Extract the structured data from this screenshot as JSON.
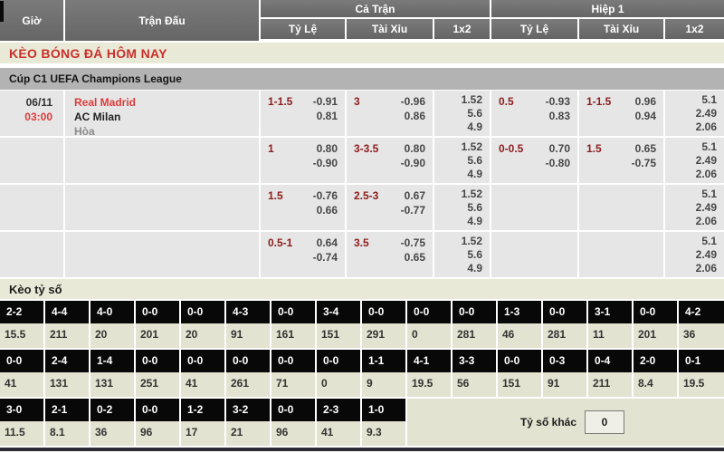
{
  "header": {
    "col_time": "Giờ",
    "col_match": "Trận Đấu",
    "col_full_time": "Cả Trận",
    "col_first_half": "Hiệp 1",
    "sub_handicap": "Tỷ Lệ",
    "sub_over_under": "Tài Xỉu",
    "sub_1x2": "1x2"
  },
  "title": "KÈO BÓNG ĐÁ HÔM NAY",
  "league": "Cúp C1 UEFA Champions League",
  "match": {
    "date": "06/11",
    "time": "03:00",
    "home": "Real Madrid",
    "away": "AC Milan",
    "draw": "Hòa"
  },
  "colors": {
    "accent_red": "#cb2f2b",
    "handicap_maroon": "#8e1d1d",
    "header_gray": "#6f6f6f",
    "beige": "#e8e9d6",
    "row_gray": "#e6e6e6",
    "score_black": "#080808"
  },
  "odds_rows": [
    {
      "ft_hdp": "1-1.5",
      "ft_hdp_odds": [
        "-0.91",
        "0.81"
      ],
      "ft_ou": "3",
      "ft_ou_odds": [
        "-0.96",
        "0.86"
      ],
      "ft_1x2": [
        "1.52",
        "5.6",
        "4.9"
      ],
      "h1_hdp": "0.5",
      "h1_hdp_odds": [
        "-0.93",
        "0.83"
      ],
      "h1_ou": "1-1.5",
      "h1_ou_odds": [
        "0.96",
        "0.94"
      ],
      "h1_1x2": [
        "5.1",
        "2.49",
        "2.06"
      ]
    },
    {
      "ft_hdp": "1",
      "ft_hdp_odds": [
        "0.80",
        "-0.90"
      ],
      "ft_ou": "3-3.5",
      "ft_ou_odds": [
        "0.80",
        "-0.90"
      ],
      "ft_1x2": [
        "1.52",
        "5.6",
        "4.9"
      ],
      "h1_hdp": "0-0.5",
      "h1_hdp_odds": [
        "0.70",
        "-0.80"
      ],
      "h1_ou": "1.5",
      "h1_ou_odds": [
        "0.65",
        "-0.75"
      ],
      "h1_1x2": [
        "5.1",
        "2.49",
        "2.06"
      ]
    },
    {
      "ft_hdp": "1.5",
      "ft_hdp_odds": [
        "-0.76",
        "0.66"
      ],
      "ft_ou": "2.5-3",
      "ft_ou_odds": [
        "0.67",
        "-0.77"
      ],
      "ft_1x2": [
        "1.52",
        "5.6",
        "4.9"
      ],
      "h1_hdp": "",
      "h1_hdp_odds": [
        "",
        ""
      ],
      "h1_ou": "",
      "h1_ou_odds": [
        "",
        ""
      ],
      "h1_1x2": [
        "5.1",
        "2.49",
        "2.06"
      ]
    },
    {
      "ft_hdp": "0.5-1",
      "ft_hdp_odds": [
        "0.64",
        "-0.74"
      ],
      "ft_ou": "3.5",
      "ft_ou_odds": [
        "-0.75",
        "0.65"
      ],
      "ft_1x2": [
        "1.52",
        "5.6",
        "4.9"
      ],
      "h1_hdp": "",
      "h1_hdp_odds": [
        "",
        ""
      ],
      "h1_ou": "",
      "h1_ou_odds": [
        "",
        ""
      ],
      "h1_1x2": [
        "5.1",
        "2.49",
        "2.06"
      ]
    }
  ],
  "score_section": {
    "title": "Kèo tỷ số",
    "other_label": "Tỷ số khác",
    "other_value": "0",
    "rows": [
      [
        [
          "2-2",
          "15.5"
        ],
        [
          "4-4",
          "211"
        ],
        [
          "4-0",
          "20"
        ],
        [
          "0-0",
          "201"
        ],
        [
          "0-0",
          "20"
        ],
        [
          "4-3",
          "91"
        ],
        [
          "0-0",
          "161"
        ],
        [
          "3-4",
          "151"
        ],
        [
          "0-0",
          "291"
        ],
        [
          "0-0",
          "0"
        ],
        [
          "0-0",
          "281"
        ],
        [
          "1-3",
          "46"
        ],
        [
          "0-0",
          "281"
        ],
        [
          "3-1",
          "11"
        ],
        [
          "0-0",
          "201"
        ],
        [
          "4-2",
          "36"
        ]
      ],
      [
        [
          "0-0",
          "41"
        ],
        [
          "2-4",
          "131"
        ],
        [
          "1-4",
          "131"
        ],
        [
          "0-0",
          "251"
        ],
        [
          "0-0",
          "41"
        ],
        [
          "0-0",
          "261"
        ],
        [
          "0-0",
          "71"
        ],
        [
          "0-0",
          "0"
        ],
        [
          "1-1",
          "9"
        ],
        [
          "4-1",
          "19.5"
        ],
        [
          "3-3",
          "56"
        ],
        [
          "0-0",
          "151"
        ],
        [
          "0-3",
          "91"
        ],
        [
          "0-4",
          "211"
        ],
        [
          "2-0",
          "8.4"
        ],
        [
          "0-1",
          "19.5"
        ]
      ],
      [
        [
          "3-0",
          "11.5"
        ],
        [
          "2-1",
          "8.1"
        ],
        [
          "0-2",
          "36"
        ],
        [
          "0-0",
          "96"
        ],
        [
          "1-2",
          "17"
        ],
        [
          "3-2",
          "21"
        ],
        [
          "0-0",
          "96"
        ],
        [
          "2-3",
          "41"
        ],
        [
          "1-0",
          "9.3"
        ]
      ]
    ]
  }
}
